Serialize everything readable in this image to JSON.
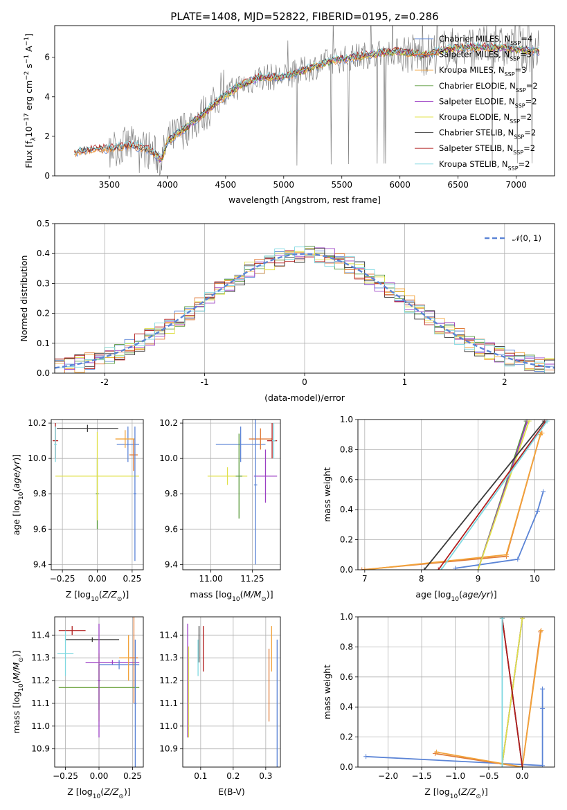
{
  "figure": {
    "title": "PLATE=1408, MJD=52822, FIBERID=0195, z=0.286"
  },
  "colors": {
    "Chabrier MILES": "#5b84d6",
    "Salpeter MILES": "#e07b39",
    "Kroupa MILES": "#f2a33a",
    "Chabrier ELODIE": "#5a9a3c",
    "Salpeter ELODIE": "#9b3fc4",
    "Kroupa ELODIE": "#e0e04a",
    "Chabrier STELIB": "#3a3a3a",
    "Salpeter STELIB": "#b11d1d",
    "Kroupa STELIB": "#7fd8e0",
    "data": "#808080",
    "gaussian": "#5b84d6"
  },
  "chart_data": [
    {
      "id": "spectrum",
      "type": "line",
      "title": "PLATE=1408, MJD=52822, FIBERID=0195, z=0.286",
      "xlabel": "wavelength [Angstrom, rest frame]",
      "ylabel": "Flux [f$_\\lambda$10$^{-17}$ erg cm$^{-2}$ s$^{-1}$ A$^{-1}$]",
      "xlim": [
        3030,
        7330
      ],
      "ylim": [
        0,
        7.6
      ],
      "xticks": [
        3500,
        4000,
        4500,
        5000,
        5500,
        6000,
        6500,
        7000
      ],
      "yticks": [
        0,
        2,
        4,
        6
      ],
      "legend_position": "right",
      "legend": [
        {
          "name": "Chabrier MILES",
          "text": "Chabrier MILES, N",
          "sub": "SSP",
          "end": "=4"
        },
        {
          "name": "Salpeter MILES",
          "text": "Salpeter MILES, N",
          "sub": "SSP",
          "end": "=3"
        },
        {
          "name": "Kroupa MILES",
          "text": "Kroupa MILES, N",
          "sub": "SSP",
          "end": "=3"
        },
        {
          "name": "Chabrier ELODIE",
          "text": "Chabrier ELODIE, N",
          "sub": "SSP",
          "end": "=2"
        },
        {
          "name": "Salpeter ELODIE",
          "text": "Salpeter ELODIE, N",
          "sub": "SSP",
          "end": "=2"
        },
        {
          "name": "Kroupa ELODIE",
          "text": "Kroupa ELODIE, N",
          "sub": "SSP",
          "end": "=2"
        },
        {
          "name": "Chabrier STELIB",
          "text": "Chabrier STELIB, N",
          "sub": "SSP",
          "end": "=2"
        },
        {
          "name": "Salpeter STELIB",
          "text": "Salpeter STELIB, N",
          "sub": "SSP",
          "end": "=2"
        },
        {
          "name": "Kroupa STELIB",
          "text": "Kroupa STELIB, N",
          "sub": "SSP",
          "end": "=2"
        }
      ],
      "model_continuum": {
        "x": [
          3200,
          3300,
          3500,
          3700,
          3850,
          3950,
          4000,
          4200,
          4400,
          4600,
          4800,
          5000,
          5200,
          5400,
          5600,
          5800,
          6000,
          6200,
          6400,
          6600,
          6800,
          7000,
          7200
        ],
        "y": [
          1.2,
          1.3,
          1.4,
          1.55,
          1.3,
          0.8,
          1.75,
          2.6,
          3.6,
          4.5,
          5.0,
          5.0,
          5.4,
          5.8,
          6.0,
          6.2,
          6.3,
          6.1,
          6.4,
          6.5,
          6.5,
          6.4,
          6.3
        ]
      }
    },
    {
      "id": "residuals",
      "type": "line",
      "xlabel": "(data-model)/error",
      "ylabel": "Normed distribution",
      "xlim": [
        -2.5,
        2.5
      ],
      "ylim": [
        0,
        0.5
      ],
      "xticks": [
        -2,
        -1,
        0,
        1,
        2
      ],
      "yticks": [
        0.0,
        0.1,
        0.2,
        0.3,
        0.4,
        0.5
      ],
      "legend": [
        {
          "name": "gaussian",
          "label": "𝒩(0, 1)"
        }
      ],
      "legend_position": "top-right",
      "grid": true
    },
    {
      "id": "age-vs-Z",
      "type": "scatter",
      "xlabel": "Z [log10(Z/Z⊙)]",
      "ylabel": "age [log10(age/yr)]",
      "xlim": [
        -0.33,
        0.33
      ],
      "ylim": [
        9.37,
        10.22
      ],
      "xticks": [
        -0.25,
        0.0,
        0.25
      ],
      "xticklabels": [
        "−0.25",
        "0.00",
        "0.25"
      ],
      "yticks": [
        9.4,
        9.6,
        9.8,
        10.0,
        10.2
      ],
      "grid": true,
      "points": [
        {
          "series": "Chabrier STELIB",
          "x": -0.07,
          "y": 10.17,
          "xerr": 0.22,
          "yerr": 0.02
        },
        {
          "series": "Salpeter STELIB",
          "x": -0.3,
          "y": 10.1,
          "xerr": 0.02,
          "yerr": 0.1
        },
        {
          "series": "Chabrier MILES",
          "x": 0.22,
          "y": 10.08,
          "xerr": 0.08,
          "yerr": 0.1
        },
        {
          "series": "Salpeter MILES",
          "x": 0.26,
          "y": 10.02,
          "xerr": 0.03,
          "yerr": 0.09
        },
        {
          "series": "Kroupa MILES",
          "x": 0.2,
          "y": 10.11,
          "xerr": 0.07,
          "yerr": 0.05
        },
        {
          "series": "Chabrier ELODIE",
          "x": 0.0,
          "y": 9.8,
          "xerr": 0.01,
          "yerr": 0.2
        },
        {
          "series": "Kroupa ELODIE",
          "x": 0.0,
          "y": 9.9,
          "xerr": 0.3,
          "yerr": 0.25
        },
        {
          "series": "Chabrier MILES",
          "x": 0.27,
          "y": 9.8,
          "xerr": 0.01,
          "yerr": 0.38
        },
        {
          "series": "Kroupa STELIB",
          "x": -0.3,
          "y": 10.08,
          "xerr": 0.01,
          "yerr": 0.1
        }
      ]
    },
    {
      "id": "age-vs-mass",
      "type": "scatter",
      "xlabel": "mass [log10(M/M⊙)]",
      "xlim": [
        10.83,
        11.42
      ],
      "ylim": [
        9.37,
        10.22
      ],
      "xticks": [
        11.0,
        11.25
      ],
      "xticklabels": [
        "11.00",
        "11.25"
      ],
      "yticks": [
        9.4,
        9.6,
        9.8,
        10.0,
        10.2
      ],
      "grid": true,
      "points": [
        {
          "series": "Chabrier MILES",
          "x": 11.18,
          "y": 10.08,
          "xerr": 0.15,
          "yerr": 0.1
        },
        {
          "series": "Salpeter MILES",
          "x": 11.3,
          "y": 10.11,
          "xerr": 0.07,
          "yerr": 0.06
        },
        {
          "series": "Salpeter STELIB",
          "x": 11.37,
          "y": 10.1,
          "xerr": 0.03,
          "yerr": 0.1
        },
        {
          "series": "Salpeter ELODIE",
          "x": 11.33,
          "y": 9.9,
          "xerr": 0.07,
          "yerr": 0.15
        },
        {
          "series": "Kroupa ELODIE",
          "x": 11.1,
          "y": 9.9,
          "xerr": 0.12,
          "yerr": 0.05
        },
        {
          "series": "Chabrier ELODIE",
          "x": 11.17,
          "y": 9.9,
          "xerr": 0.02,
          "yerr": 0.24
        },
        {
          "series": "Chabrier MILES",
          "x": 11.27,
          "y": 9.85,
          "xerr": 0.01,
          "yerr": 0.45
        },
        {
          "series": "Kroupa STELIB",
          "x": 11.38,
          "y": 10.1,
          "xerr": 0.01,
          "yerr": 0.1
        }
      ]
    },
    {
      "id": "weight-vs-age",
      "type": "line",
      "xlabel": "age [log10(age/yr)]",
      "ylabel": "mass weight",
      "xlim": [
        6.88,
        10.35
      ],
      "ylim": [
        0,
        1
      ],
      "xticks": [
        7,
        8,
        9,
        10
      ],
      "yticks": [
        0.0,
        0.2,
        0.4,
        0.6,
        0.8,
        1.0
      ],
      "grid": true,
      "series": [
        {
          "name": "Chabrier MILES",
          "x": [
            8.6,
            9.7,
            10.05,
            10.15
          ],
          "y": [
            0.01,
            0.07,
            0.39,
            0.52
          ]
        },
        {
          "name": "Salpeter MILES",
          "x": [
            6.95,
            9.5,
            10.1,
            10.12
          ],
          "y": [
            0.0,
            0.09,
            0.9,
            0.91
          ]
        },
        {
          "name": "Kroupa MILES",
          "x": [
            7.0,
            9.5,
            10.1,
            10.13
          ],
          "y": [
            0.0,
            0.1,
            0.9,
            0.91
          ]
        },
        {
          "name": "Chabrier ELODIE",
          "x": [
            9.0,
            9.85
          ],
          "y": [
            0.0,
            0.99
          ]
        },
        {
          "name": "Salpeter ELODIE",
          "x": [
            9.0,
            9.87
          ],
          "y": [
            0.0,
            0.99
          ]
        },
        {
          "name": "Kroupa ELODIE",
          "x": [
            9.0,
            9.9
          ],
          "y": [
            0.0,
            0.99
          ]
        },
        {
          "name": "Chabrier STELIB",
          "x": [
            8.05,
            10.17
          ],
          "y": [
            0.0,
            0.99
          ]
        },
        {
          "name": "Salpeter STELIB",
          "x": [
            8.3,
            10.2
          ],
          "y": [
            0.0,
            0.99
          ]
        },
        {
          "name": "Kroupa STELIB",
          "x": [
            8.35,
            10.22
          ],
          "y": [
            0.0,
            0.99
          ]
        }
      ]
    },
    {
      "id": "mass-vs-Z",
      "type": "scatter",
      "xlabel": "Z [log10(Z/Z⊙)]",
      "ylabel": "mass [log10(M/M⊙)]",
      "xlim": [
        -0.33,
        0.33
      ],
      "ylim": [
        10.82,
        11.48
      ],
      "xticks": [
        -0.25,
        0.0,
        0.25
      ],
      "xticklabels": [
        "−0.25",
        "0.00",
        "0.25"
      ],
      "yticks": [
        10.9,
        11.0,
        11.1,
        11.2,
        11.3,
        11.4
      ],
      "grid": true,
      "points": [
        {
          "series": "Salpeter STELIB",
          "x": -0.2,
          "y": 11.42,
          "xerr": 0.1,
          "yerr": 0.02
        },
        {
          "series": "Chabrier STELIB",
          "x": -0.05,
          "y": 11.38,
          "xerr": 0.2,
          "yerr": 0.01
        },
        {
          "series": "Kroupa STELIB",
          "x": -0.25,
          "y": 11.32,
          "xerr": 0.06,
          "yerr": 0.1
        },
        {
          "series": "Salpeter ELODIE",
          "x": 0.1,
          "y": 11.28,
          "xerr": 0.2,
          "yerr": 0.01
        },
        {
          "series": "Chabrier MILES",
          "x": 0.15,
          "y": 11.27,
          "xerr": 0.15,
          "yerr": 0.02
        },
        {
          "series": "Kroupa MILES",
          "x": 0.22,
          "y": 11.3,
          "xerr": 0.07,
          "yerr": 0.1
        },
        {
          "series": "Salpeter MILES",
          "x": 0.26,
          "y": 11.3,
          "xerr": 0.03,
          "yerr": 0.2
        },
        {
          "series": "Kroupa ELODIE",
          "x": 0.0,
          "y": 11.17,
          "xerr": 0.3,
          "yerr": 0.15
        },
        {
          "series": "Chabrier ELODIE",
          "x": 0.0,
          "y": 11.17,
          "xerr": 0.3,
          "yerr": 0.1
        },
        {
          "series": "Chabrier MILES",
          "x": 0.27,
          "y": 11.1,
          "xerr": 0.01,
          "yerr": 0.28
        },
        {
          "series": "Salpeter ELODIE",
          "x": 0.0,
          "y": 11.2,
          "xerr": 0.01,
          "yerr": 0.25
        }
      ]
    },
    {
      "id": "mass-vs-EBV",
      "type": "scatter",
      "xlabel": "E(B-V)",
      "xlim": [
        0.045,
        0.345
      ],
      "ylim": [
        10.82,
        11.48
      ],
      "xticks": [
        0.1,
        0.2,
        0.3
      ],
      "yticks": [
        10.9,
        11.0,
        11.1,
        11.2,
        11.3,
        11.4
      ],
      "grid": true,
      "points": [
        {
          "series": "Salpeter ELODIE",
          "x": 0.06,
          "y": 11.2,
          "yerr": 0.25
        },
        {
          "series": "Kroupa ELODIE",
          "x": 0.063,
          "y": 11.15,
          "yerr": 0.2
        },
        {
          "series": "Chabrier STELIB",
          "x": 0.095,
          "y": 11.36,
          "yerr": 0.08
        },
        {
          "series": "Kroupa STELIB",
          "x": 0.092,
          "y": 11.3,
          "yerr": 0.08
        },
        {
          "series": "Salpeter STELIB",
          "x": 0.108,
          "y": 11.34,
          "yerr": 0.1
        },
        {
          "series": "Salpeter MILES",
          "x": 0.31,
          "y": 11.18,
          "yerr": 0.16
        },
        {
          "series": "Kroupa MILES",
          "x": 0.318,
          "y": 11.34,
          "yerr": 0.1
        },
        {
          "series": "Chabrier MILES",
          "x": 0.335,
          "y": 11.1,
          "yerr": 0.28
        }
      ]
    },
    {
      "id": "weight-vs-Z",
      "type": "line",
      "xlabel": "Z [log10(Z/Z⊙)]",
      "ylabel": "mass weight",
      "xlim": [
        -2.45,
        0.48
      ],
      "ylim": [
        0,
        1
      ],
      "xticks": [
        -2.0,
        -1.5,
        -1.0,
        -0.5,
        0.0
      ],
      "xticklabels": [
        "−2.0",
        "−1.5",
        "−1.0",
        "−0.5",
        "0.0"
      ],
      "yticks": [
        0.0,
        0.2,
        0.4,
        0.6,
        0.8,
        1.0
      ],
      "grid": true,
      "series": [
        {
          "name": "Chabrier MILES",
          "x": [
            -2.33,
            0.3,
            0.3,
            0.3
          ],
          "y": [
            0.07,
            0.01,
            0.39,
            0.52
          ]
        },
        {
          "name": "Salpeter MILES",
          "x": [
            -1.3,
            0.0,
            0.27
          ],
          "y": [
            0.09,
            0.0,
            0.9
          ]
        },
        {
          "name": "Kroupa MILES",
          "x": [
            -1.28,
            0.0,
            0.28
          ],
          "y": [
            0.1,
            0.0,
            0.91
          ]
        },
        {
          "name": "Chabrier ELODIE",
          "x": [
            -0.3,
            0.0
          ],
          "y": [
            0.02,
            0.99
          ]
        },
        {
          "name": "Salpeter ELODIE",
          "x": [
            -0.3,
            0.0
          ],
          "y": [
            0.02,
            0.99
          ]
        },
        {
          "name": "Kroupa ELODIE",
          "x": [
            -0.3,
            0.0
          ],
          "y": [
            0.02,
            0.99
          ]
        },
        {
          "name": "Chabrier STELIB",
          "x": [
            -0.3,
            0.0
          ],
          "y": [
            0.99,
            0.0
          ]
        },
        {
          "name": "Salpeter STELIB",
          "x": [
            -0.3,
            0.0
          ],
          "y": [
            0.99,
            0.0
          ]
        },
        {
          "name": "Kroupa STELIB",
          "x": [
            -0.3,
            -0.3
          ],
          "y": [
            0.0,
            0.99
          ]
        }
      ]
    }
  ]
}
